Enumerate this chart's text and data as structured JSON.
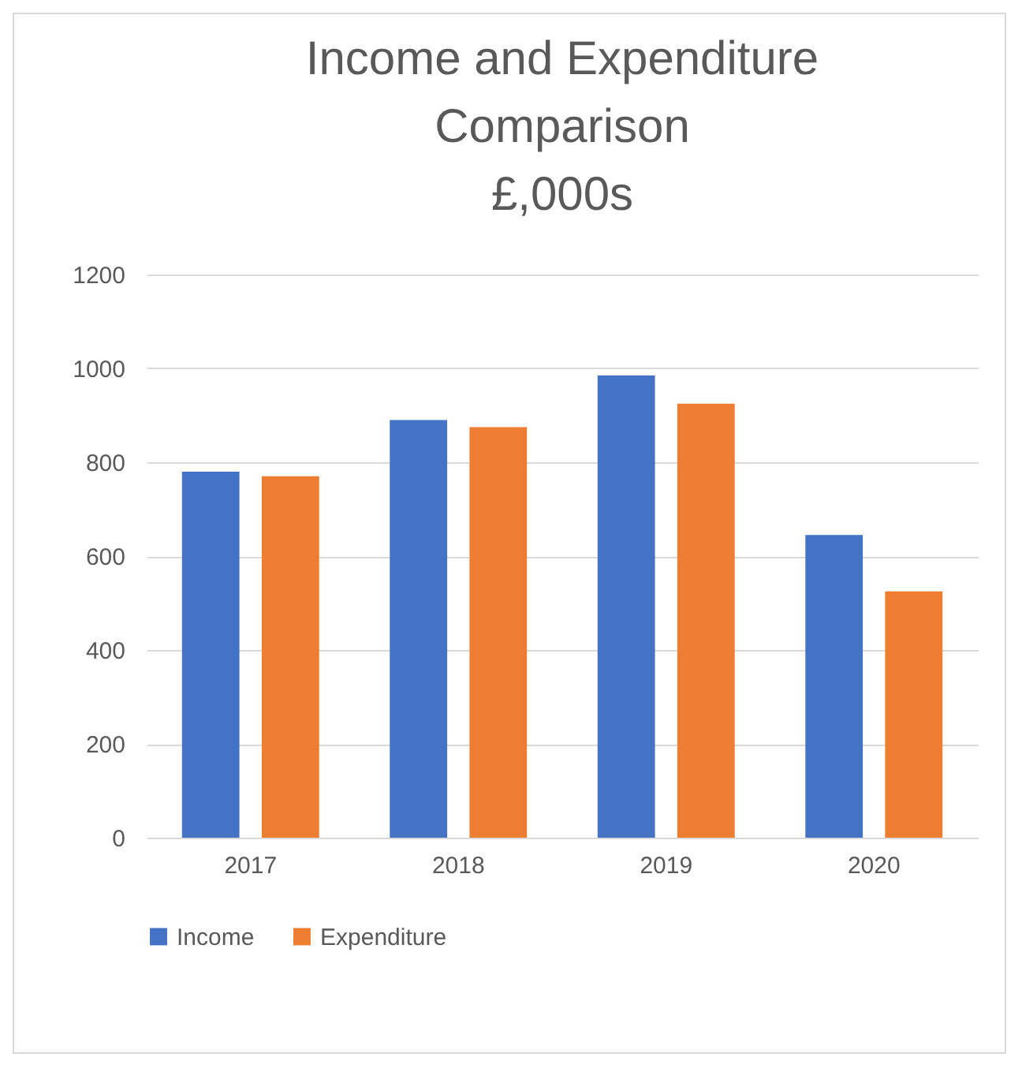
{
  "chart_data": {
    "type": "bar",
    "title": [
      "Income and Expenditure",
      "Comparison",
      "£,000s"
    ],
    "categories": [
      "2017",
      "2018",
      "2019",
      "2020"
    ],
    "series": [
      {
        "name": "Income",
        "color": "#4472c4",
        "values": [
          780,
          890,
          985,
          645
        ]
      },
      {
        "name": "Expenditure",
        "color": "#ed7d31",
        "values": [
          770,
          875,
          925,
          525
        ]
      }
    ],
    "ylim": [
      0,
      1200
    ],
    "yticks": [
      0,
      200,
      400,
      600,
      800,
      1000,
      1200
    ],
    "grid": "y",
    "legend": "bottom"
  }
}
